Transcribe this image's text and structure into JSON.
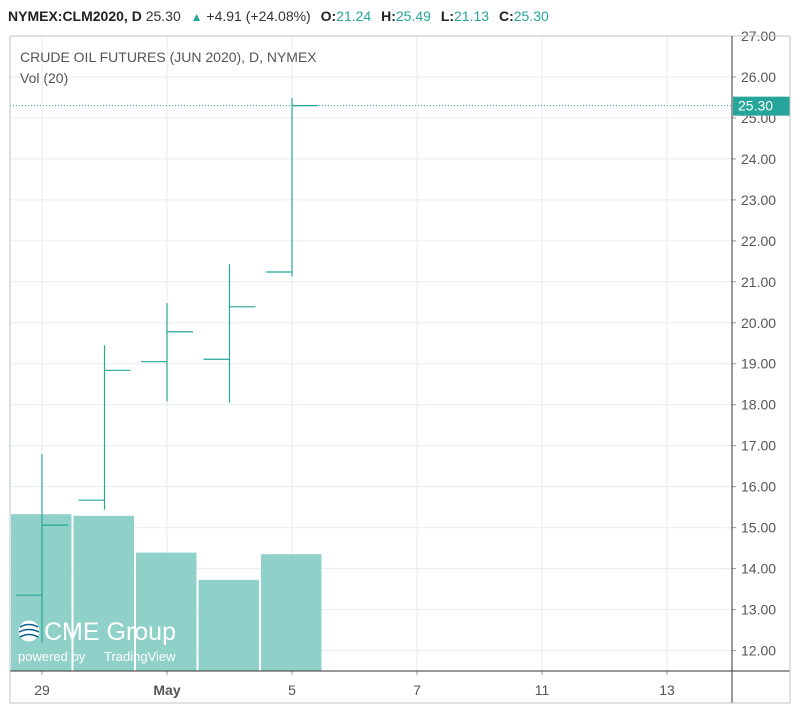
{
  "header": {
    "symbol": "NYMEX:CLM2020, D",
    "last": "25.30",
    "change": "+4.91 (+24.08%)",
    "o_label": "O:",
    "o_value": "21.24",
    "h_label": "H:",
    "h_value": "25.49",
    "l_label": "L:",
    "l_value": "21.13",
    "c_label": "C:",
    "c_value": "25.30"
  },
  "legend": {
    "title": "CRUDE OIL FUTURES (JUN 2020), D, NYMEX",
    "volume": "Vol (20)"
  },
  "branding": {
    "logo": "CME Group",
    "powered_by": "powered by",
    "tradingview": "TradingView"
  },
  "colors": {
    "up": "#26a69a",
    "volume": "#8fd0c8",
    "grid": "#e6eef0",
    "axis": "#333333"
  },
  "chart_data": {
    "type": "ohlc",
    "title": "CRUDE OIL FUTURES (JUN 2020), D, NYMEX",
    "ylim": [
      11.5,
      27.0
    ],
    "y_ticks": [
      "12.00",
      "13.00",
      "14.00",
      "15.00",
      "16.00",
      "17.00",
      "18.00",
      "19.00",
      "20.00",
      "21.00",
      "22.00",
      "23.00",
      "24.00",
      "25.00",
      "26.00",
      "27.00"
    ],
    "x_ticks": [
      "29",
      "May",
      "5",
      "7",
      "11",
      "13"
    ],
    "last_price_label": "25.30",
    "last_price": 25.3,
    "bars": [
      {
        "date": "Apr 29",
        "open": 13.35,
        "high": 16.8,
        "low": 12.2,
        "close": 15.06,
        "volume_rel": 0.98
      },
      {
        "date": "Apr 30",
        "open": 15.67,
        "high": 19.45,
        "low": 15.44,
        "close": 18.84,
        "volume_rel": 0.97
      },
      {
        "date": "May 1",
        "open": 19.05,
        "high": 20.48,
        "low": 18.08,
        "close": 19.78,
        "volume_rel": 0.74
      },
      {
        "date": "May 4",
        "open": 19.11,
        "high": 21.43,
        "low": 18.05,
        "close": 20.39,
        "volume_rel": 0.57
      },
      {
        "date": "May 5",
        "open": 21.24,
        "high": 25.49,
        "low": 21.13,
        "close": 25.3,
        "volume_rel": 0.73
      }
    ]
  }
}
